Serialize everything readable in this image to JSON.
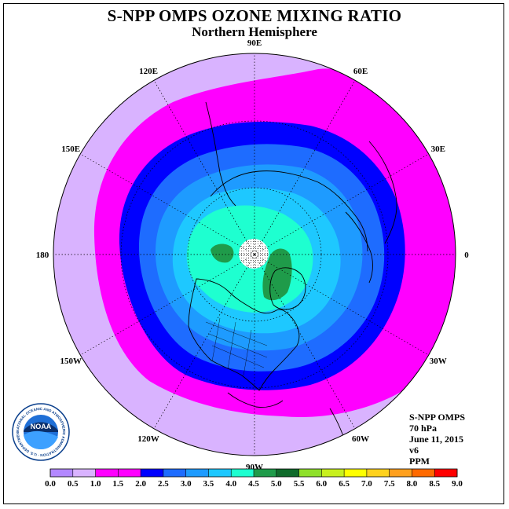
{
  "header": {
    "title": "S-NPP OMPS OZONE MIXING RATIO",
    "subtitle": "Northern Hemisphere"
  },
  "info_box": {
    "instrument": "S-NPP OMPS",
    "pressure_level": "70 hPa",
    "date": "June 11, 2015",
    "version": "v6",
    "units": "PPM"
  },
  "longitude_labels": [
    {
      "text": "90E",
      "lon": 90
    },
    {
      "text": "60E",
      "lon": 60
    },
    {
      "text": "30E",
      "lon": 30
    },
    {
      "text": "0",
      "lon": 0
    },
    {
      "text": "30W",
      "lon": -30
    },
    {
      "text": "60W",
      "lon": -60
    },
    {
      "text": "90W",
      "lon": -90
    },
    {
      "text": "120W",
      "lon": -120
    },
    {
      "text": "150W",
      "lon": -150
    },
    {
      "text": "180",
      "lon": 180
    },
    {
      "text": "150E",
      "lon": 150
    },
    {
      "text": "120E",
      "lon": 120
    }
  ],
  "colorbar": {
    "ticks": [
      "0.0",
      "0.5",
      "1.0",
      "1.5",
      "2.0",
      "2.5",
      "3.0",
      "3.5",
      "4.0",
      "4.5",
      "5.0",
      "5.5",
      "6.0",
      "6.5",
      "7.0",
      "7.5",
      "8.0",
      "8.5",
      "9.0"
    ],
    "colors": [
      "#b388ff",
      "#d9b3ff",
      "#ff00ff",
      "#ff00ff",
      "#0000ff",
      "#1e6cff",
      "#1e9bff",
      "#1ec8ff",
      "#1effd0",
      "#1f9b4a",
      "#0f6b2b",
      "#8fe02a",
      "#c8f01e",
      "#ffff00",
      "#ffd21e",
      "#ffa01e",
      "#ff6a00",
      "#ff0000",
      "#8b4b2b"
    ]
  },
  "map_data": {
    "projection": "north-polar-stereographic",
    "variable": "ozone mixing ratio",
    "level_hpa": 70,
    "units": "PPM",
    "contour_bands_ppm": [
      {
        "range": [
          0.5,
          1.0
        ],
        "color": "#d9b3ff",
        "region": "outer edge"
      },
      {
        "range": [
          1.0,
          1.5
        ],
        "color": "#ff00ff"
      },
      {
        "range": [
          2.0,
          2.5
        ],
        "color": "#0000ff"
      },
      {
        "range": [
          2.5,
          3.0
        ],
        "color": "#1e6cff"
      },
      {
        "range": [
          3.0,
          3.5
        ],
        "color": "#1e9bff"
      },
      {
        "range": [
          3.5,
          4.0
        ],
        "color": "#1ec8ff"
      },
      {
        "range": [
          4.0,
          4.5
        ],
        "color": "#1effd0"
      },
      {
        "range": [
          4.5,
          5.0
        ],
        "color": "#1f9b4a",
        "region": "small patches near pole"
      }
    ],
    "no_data_region": "polar cap (stippled)"
  },
  "logo": {
    "name": "noaa-logo",
    "text": "NOAA",
    "ring_text": "NATIONAL OCEANIC AND ATMOSPHERIC ADMINISTRATION · U.S. DEPARTMENT OF COMMERCE"
  }
}
